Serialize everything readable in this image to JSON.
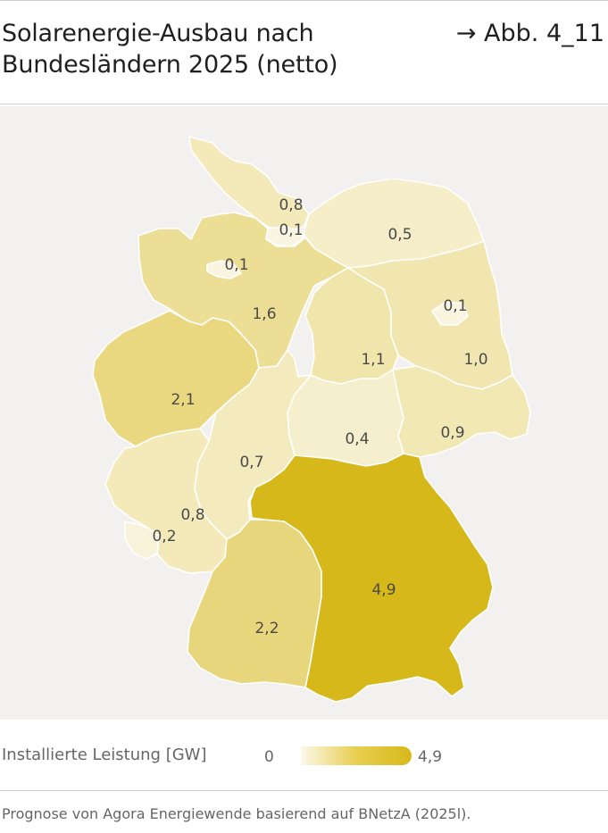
{
  "header": {
    "title": "Solarenergie-Ausbau nach Bundesländern 2025 (netto)",
    "reference": "→ Abb. 4_11"
  },
  "legend": {
    "label": "Installierte Leistung [GW]",
    "min_label": "0",
    "max_label": "4,9",
    "min": 0,
    "max": 4.9,
    "color_low": "#fbf8ea",
    "color_high": "#d7b81a"
  },
  "source": "Prognose von Agora Energiewende basierend auf BNetzA (2025l).",
  "colors": {
    "panel": "#f2f1ef",
    "border": "#ffffff"
  },
  "chart_data": {
    "type": "choropleth",
    "unit": "GW",
    "regions": [
      {
        "label": "0,8",
        "value": 0.8
      },
      {
        "label": "0,1",
        "value": 0.1
      },
      {
        "label": "0,5",
        "value": 0.5
      },
      {
        "label": "0,1",
        "value": 0.1
      },
      {
        "label": "1,6",
        "value": 1.6
      },
      {
        "label": "0,1",
        "value": 0.1
      },
      {
        "label": "1,0",
        "value": 1.0
      },
      {
        "label": "1,1",
        "value": 1.1
      },
      {
        "label": "2,1",
        "value": 2.1
      },
      {
        "label": "0,4",
        "value": 0.4
      },
      {
        "label": "0,9",
        "value": 0.9
      },
      {
        "label": "0,7",
        "value": 0.7
      },
      {
        "label": "0,8",
        "value": 0.8
      },
      {
        "label": "0,2",
        "value": 0.2
      },
      {
        "label": "4,9",
        "value": 4.9
      },
      {
        "label": "2,2",
        "value": 2.2
      }
    ]
  }
}
